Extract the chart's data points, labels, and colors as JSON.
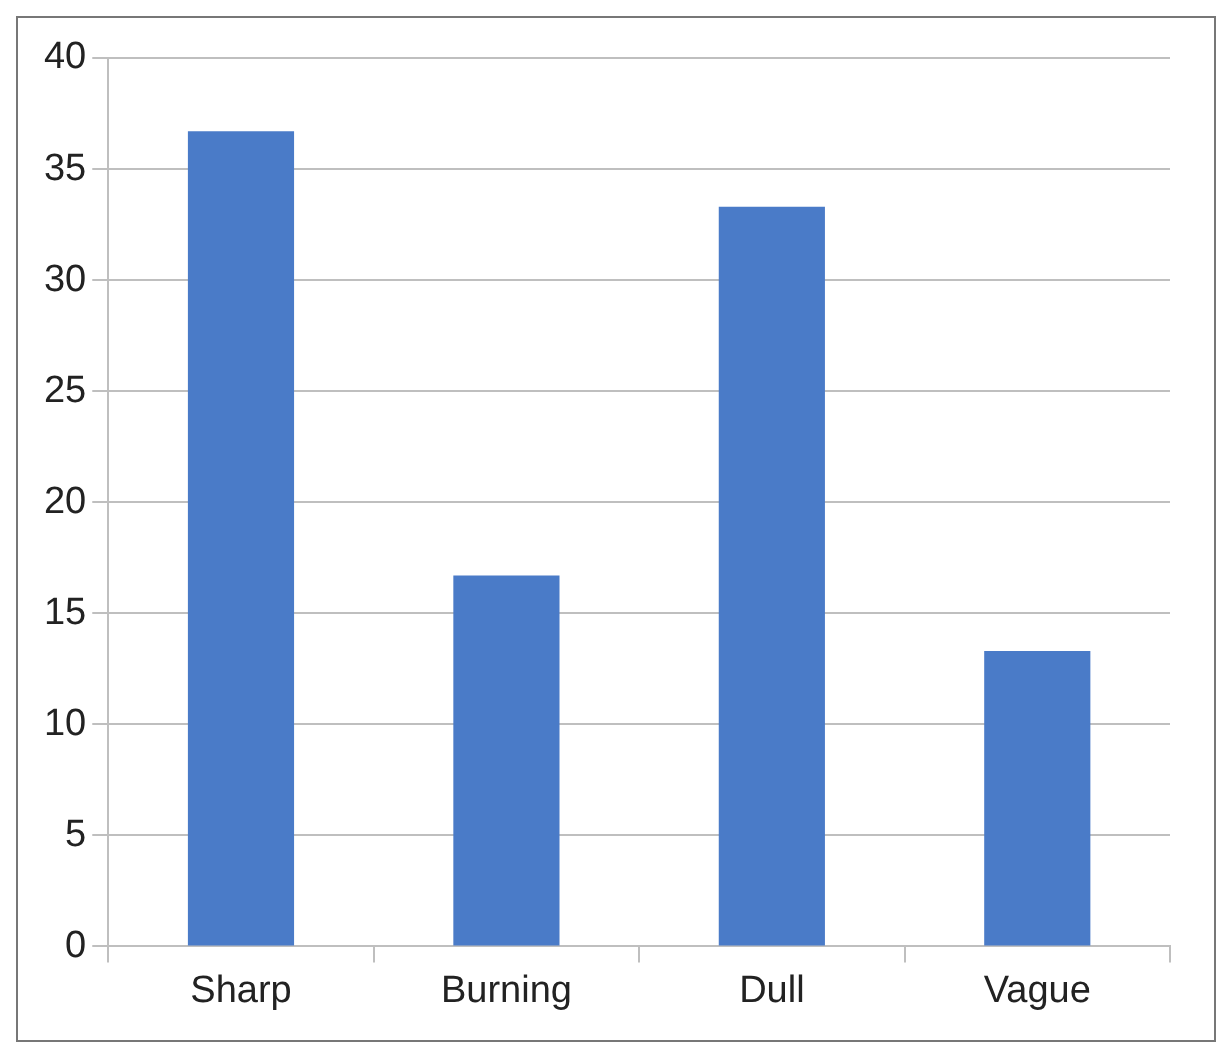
{
  "chart_data": {
    "type": "bar",
    "categories": [
      "Sharp",
      "Burning",
      "Dull",
      "Vague"
    ],
    "values": [
      36.7,
      16.7,
      33.3,
      13.3
    ],
    "color": "#4a7bc8",
    "ylim": [
      0,
      40
    ],
    "yticks": [
      0,
      5,
      10,
      15,
      20,
      25,
      30,
      35,
      40
    ],
    "grid": "y",
    "legend": false
  }
}
